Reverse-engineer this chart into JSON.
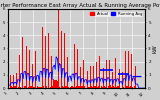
{
  "title": "Solar PV/Inverter Performance East Array Actual & Running Average Power Output",
  "title_fontsize": 4.0,
  "bg_color": "#d0d0d0",
  "plot_bg_color": "#d0d0d0",
  "bar_color": "#ff0000",
  "avg_color": "#0000ff",
  "legend_actual": "Actual",
  "legend_avg": "Running Avg",
  "ylabel_right": "kW",
  "ylabel_fontsize": 4,
  "grid_color": "#ffffff",
  "tick_fontsize": 3.0,
  "n_bars": 300,
  "seed": 42,
  "ylim": [
    0,
    6
  ],
  "xlim": [
    0,
    300
  ]
}
